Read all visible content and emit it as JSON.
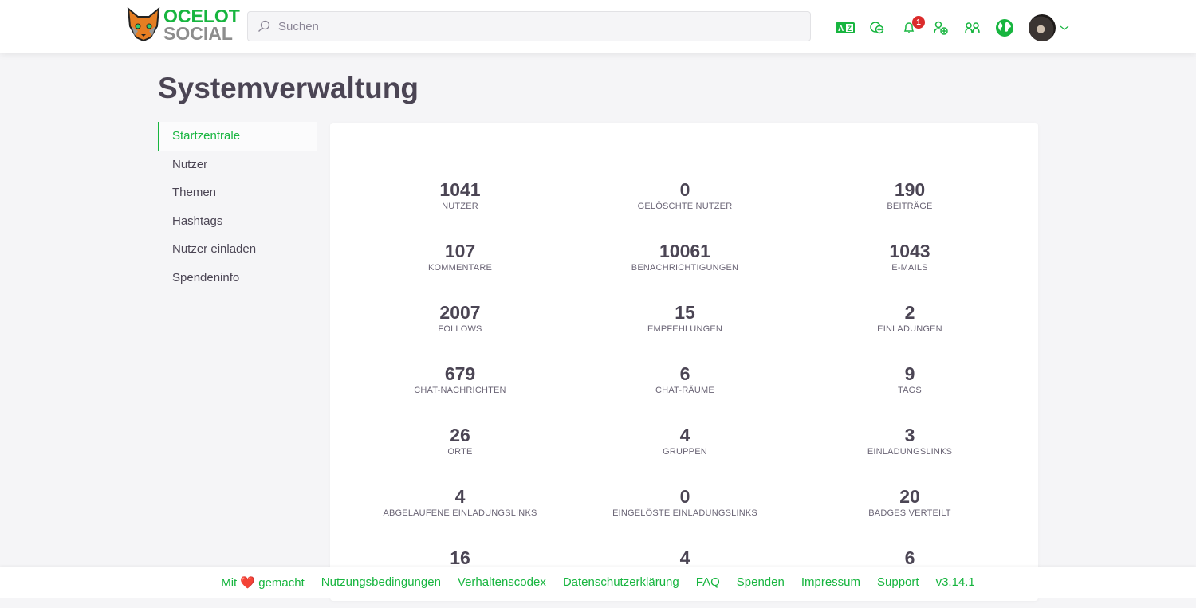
{
  "header": {
    "logo": "OCELOT SOCIAL",
    "logo_line1": "OCELOT",
    "logo_line2": "SOCIAL",
    "search_placeholder": "Suchen",
    "notification_count": "1",
    "icons": [
      "language-icon",
      "chat-icon",
      "bell-icon",
      "invite-user-icon",
      "groups-icon",
      "globe-icon"
    ],
    "accent": "#17b53f"
  },
  "page": {
    "title": "Systemverwaltung"
  },
  "sidebar": {
    "items": [
      {
        "label": "Startzentrale",
        "active": true
      },
      {
        "label": "Nutzer"
      },
      {
        "label": "Themen"
      },
      {
        "label": "Hashtags"
      },
      {
        "label": "Nutzer einladen"
      },
      {
        "label": "Spendeninfo"
      }
    ]
  },
  "stats": [
    {
      "value": "1041",
      "label": "Nutzer"
    },
    {
      "value": "0",
      "label": "Gelöschte Nutzer"
    },
    {
      "value": "190",
      "label": "Beiträge"
    },
    {
      "value": "107",
      "label": "Kommentare"
    },
    {
      "value": "10061",
      "label": "Benachrichtigungen"
    },
    {
      "value": "1043",
      "label": "E-Mails"
    },
    {
      "value": "2007",
      "label": "Follows"
    },
    {
      "value": "15",
      "label": "Empfehlungen"
    },
    {
      "value": "2",
      "label": "Einladungen"
    },
    {
      "value": "679",
      "label": "Chat-Nachrichten"
    },
    {
      "value": "6",
      "label": "Chat-Räume"
    },
    {
      "value": "9",
      "label": "Tags"
    },
    {
      "value": "26",
      "label": "Orte"
    },
    {
      "value": "4",
      "label": "Gruppen"
    },
    {
      "value": "3",
      "label": "Einladungslinks"
    },
    {
      "value": "4",
      "label": "Abgelaufene Einladungslinks"
    },
    {
      "value": "0",
      "label": "Eingelöste Einladungslinks"
    },
    {
      "value": "20",
      "label": "Badges verteilt"
    },
    {
      "value": "16"
    },
    {
      "value": "4"
    },
    {
      "value": "6"
    }
  ],
  "footer": {
    "made_with_pre": "Mit",
    "made_with_post": "gemacht",
    "links": [
      "Nutzungsbedingungen",
      "Verhaltenscodex",
      "Datenschutzerklärung",
      "FAQ",
      "Spenden",
      "Impressum",
      "Support",
      "v3.14.1"
    ]
  }
}
